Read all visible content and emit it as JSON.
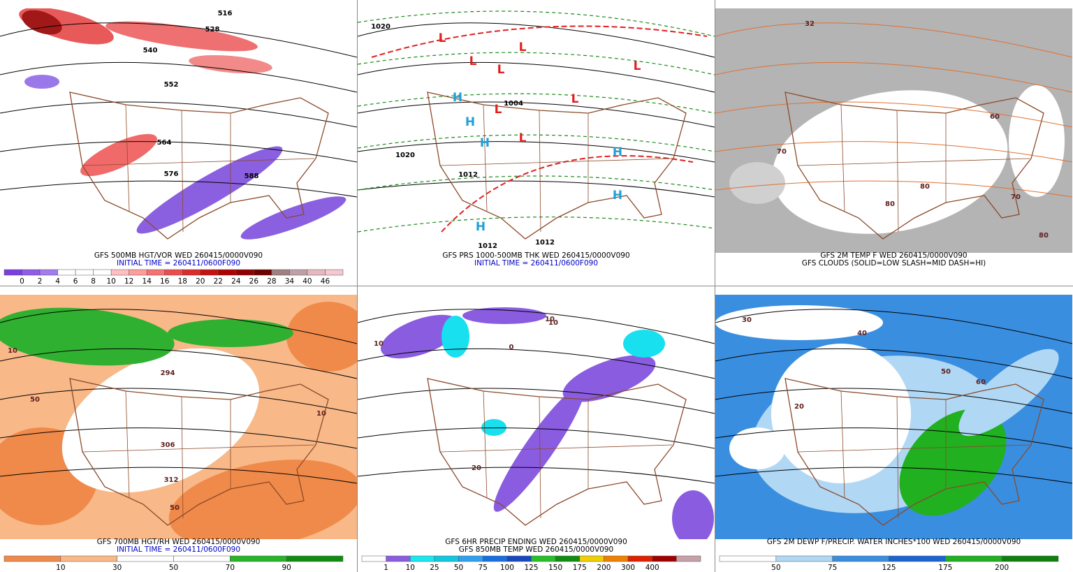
{
  "panels": [
    {
      "captions": [
        "GFS 500MB HGT/VOR WED 260415/0000V090",
        "INITIAL TIME = 260411/0600F090"
      ],
      "caption_colors": [
        "#000000",
        "#0000c8"
      ],
      "map_labels": [
        "516",
        "528",
        "540",
        "552",
        "564",
        "576",
        "588"
      ],
      "colorbar": {
        "labels": [
          0,
          2,
          4,
          6,
          8,
          10,
          12,
          14,
          16,
          18,
          20,
          22,
          24,
          26,
          28,
          34,
          40,
          46
        ],
        "colors": [
          "#7a3fe0",
          "#8d5ce8",
          "#a27cf0",
          "#ffffff",
          "#ffffff",
          "#ffffff",
          "#ffc0c0",
          "#ff9c9c",
          "#f77272",
          "#ee4c4c",
          "#dd2a2a",
          "#c81010",
          "#b00000",
          "#900000",
          "#6e0000",
          "#a08080",
          "#c0a0a8",
          "#e8b8c0",
          "#f4c8d0"
        ]
      }
    },
    {
      "captions": [
        "GFS PRS 1000-500MB THK WED 260415/0000V090",
        "INITIAL TIME = 260411/0600F090"
      ],
      "caption_colors": [
        "#000000",
        "#0000c8"
      ],
      "map_labels": [
        "1020",
        "1004",
        "1020",
        "1012",
        "1012",
        "1012",
        "L",
        "L",
        "L",
        "L",
        "L",
        "L",
        "L",
        "L",
        "H",
        "H",
        "H",
        "H",
        "H",
        "H"
      ]
    },
    {
      "captions": [
        "GFS 2M TEMP F WED 260415/0000V090",
        "GFS CLOUDS (SOLID=LOW SLASH=MID DASH=HI)"
      ],
      "caption_colors": [
        "#000000",
        "#000000"
      ],
      "map_labels": [
        "32",
        "70",
        "80",
        "60",
        "70",
        "80",
        "80"
      ]
    },
    {
      "captions": [
        "GFS 700MB HGT/RH WED 260415/0000V090",
        "INITIAL TIME = 260411/0600F090"
      ],
      "caption_colors": [
        "#000000",
        "#0000c8"
      ],
      "map_labels": [
        "10",
        "50",
        "306",
        "294",
        "312",
        "50",
        "10"
      ],
      "colorbar": {
        "labels": [
          10,
          30,
          50,
          70,
          90
        ],
        "colors": [
          "#f08a4a",
          "#f8b888",
          "#ffffff",
          "#ffffff",
          "#28b428",
          "#108c10"
        ]
      }
    },
    {
      "captions": [
        "GFS 6HR PRECIP ENDING WED 260415/0000V090",
        "GFS 850MB TEMP WED 260415/0000V090"
      ],
      "caption_colors": [
        "#000000",
        "#000000"
      ],
      "map_labels": [
        "10",
        "0",
        "10",
        "20",
        "10"
      ],
      "colorbar": {
        "labels": [
          1,
          10,
          25,
          50,
          75,
          100,
          125,
          150,
          175,
          200,
          300,
          400
        ],
        "colors": [
          "#ffffff",
          "#8a5ce0",
          "#18e8f0",
          "#10c8e0",
          "#30a0f0",
          "#1870e0",
          "#1848c0",
          "#28c028",
          "#108c10",
          "#f0d000",
          "#f08000",
          "#e02000",
          "#a00000",
          "#c8a0a8"
        ]
      }
    },
    {
      "captions": [
        "GFS 2M DEWP F/PRECIP. WATER INCHES*100 WED 260415/0000V090"
      ],
      "caption_colors": [
        "#000000"
      ],
      "map_labels": [
        "30",
        "40",
        "50",
        "60",
        "20"
      ],
      "colorbar": {
        "labels": [
          50,
          75,
          125,
          175,
          200
        ],
        "colors": [
          "#ffffff",
          "#b0d8f4",
          "#3a8ee0",
          "#1c64d0",
          "#20b020",
          "#0e800e"
        ]
      }
    }
  ]
}
